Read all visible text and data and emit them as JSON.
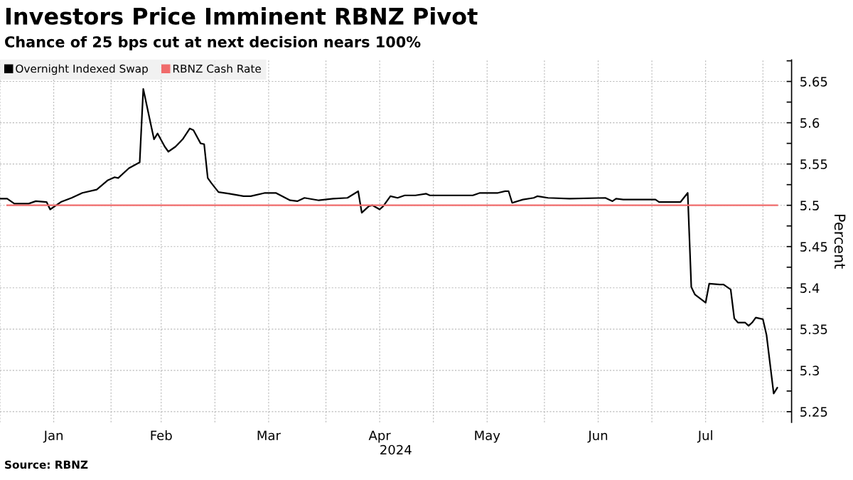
{
  "chart_data": {
    "type": "line",
    "title": "Investors Price Imminent RBNZ Pivot",
    "subtitle": "Chance of 25 bps cut at next decision nears 100%",
    "xlabel": "2024",
    "ylabel": "Percent",
    "annotations": [
      "Source: RBNZ"
    ],
    "xlim": [
      "2024-01-01",
      "2024-08-09"
    ],
    "xticks": [
      {
        "value": "2024-01-01",
        "label": null
      },
      {
        "value": "2024-01-16",
        "label": "Jan"
      },
      {
        "value": "2024-02-01",
        "label": null
      },
      {
        "value": "2024-02-15",
        "label": "Feb"
      },
      {
        "value": "2024-03-01",
        "label": null
      },
      {
        "value": "2024-03-16",
        "label": "Mar"
      },
      {
        "value": "2024-04-01",
        "label": null
      },
      {
        "value": "2024-04-16",
        "label": "Apr"
      },
      {
        "value": "2024-05-01",
        "label": null
      },
      {
        "value": "2024-05-16",
        "label": "May"
      },
      {
        "value": "2024-06-01",
        "label": null
      },
      {
        "value": "2024-06-16",
        "label": "Jun"
      },
      {
        "value": "2024-07-01",
        "label": null
      },
      {
        "value": "2024-07-16",
        "label": "Jul"
      },
      {
        "value": "2024-08-01",
        "label": null
      }
    ],
    "ylim": [
      5.237,
      5.676
    ],
    "yticks": [
      5.25,
      5.3,
      5.35,
      5.4,
      5.45,
      5.5,
      5.55,
      5.6,
      5.65
    ],
    "grid": true,
    "legend": "top left",
    "marker": "none",
    "line_style": "solid",
    "series": [
      {
        "name": "Overnight Indexed Swap",
        "color": "#000000",
        "x": [
          "2024-01-01",
          "2024-01-03",
          "2024-01-05",
          "2024-01-09",
          "2024-01-11",
          "2024-01-14",
          "2024-01-15",
          "2024-01-18",
          "2024-01-21",
          "2024-01-24",
          "2024-01-28",
          "2024-01-31",
          "2024-02-02",
          "2024-02-03",
          "2024-02-06",
          "2024-02-09",
          "2024-02-10",
          "2024-02-12",
          "2024-02-13",
          "2024-02-14",
          "2024-02-16",
          "2024-02-17",
          "2024-02-19",
          "2024-02-21",
          "2024-02-23",
          "2024-02-24",
          "2024-02-26",
          "2024-02-27",
          "2024-02-28",
          "2024-02-29",
          "2024-03-02",
          "2024-03-05",
          "2024-03-09",
          "2024-03-11",
          "2024-03-15",
          "2024-03-18",
          "2024-03-22",
          "2024-03-24",
          "2024-03-26",
          "2024-03-30",
          "2024-04-03",
          "2024-04-07",
          "2024-04-10",
          "2024-04-11",
          "2024-04-13",
          "2024-04-14",
          "2024-04-16",
          "2024-04-17",
          "2024-04-19",
          "2024-04-21",
          "2024-04-23",
          "2024-04-26",
          "2024-04-29",
          "2024-04-30",
          "2024-05-06",
          "2024-05-12",
          "2024-05-14",
          "2024-05-19",
          "2024-05-21",
          "2024-05-22",
          "2024-05-23",
          "2024-05-26",
          "2024-05-29",
          "2024-05-30",
          "2024-06-02",
          "2024-06-08",
          "2024-06-18",
          "2024-06-20",
          "2024-06-21",
          "2024-06-23",
          "2024-07-02",
          "2024-07-03",
          "2024-07-09",
          "2024-07-11",
          "2024-07-12",
          "2024-07-13",
          "2024-07-16",
          "2024-07-17",
          "2024-07-20",
          "2024-07-21",
          "2024-07-23",
          "2024-07-24",
          "2024-07-25",
          "2024-07-27",
          "2024-07-28",
          "2024-07-29",
          "2024-07-30",
          "2024-08-01",
          "2024-08-02",
          "2024-08-04",
          "2024-08-05"
        ],
        "values": [
          5.508,
          5.508,
          5.502,
          5.502,
          5.505,
          5.504,
          5.495,
          5.504,
          5.509,
          5.515,
          5.519,
          5.53,
          5.534,
          5.533,
          5.545,
          5.552,
          5.641,
          5.6,
          5.58,
          5.587,
          5.571,
          5.565,
          5.571,
          5.58,
          5.593,
          5.591,
          5.575,
          5.574,
          5.533,
          5.527,
          5.516,
          5.514,
          5.511,
          5.511,
          5.515,
          5.515,
          5.506,
          5.505,
          5.509,
          5.506,
          5.508,
          5.509,
          5.517,
          5.491,
          5.499,
          5.5,
          5.495,
          5.499,
          5.511,
          5.509,
          5.512,
          5.512,
          5.514,
          5.512,
          5.512,
          5.512,
          5.515,
          5.515,
          5.517,
          5.517,
          5.503,
          5.507,
          5.509,
          5.511,
          5.509,
          5.508,
          5.509,
          5.505,
          5.508,
          5.507,
          5.507,
          5.504,
          5.504,
          5.515,
          5.401,
          5.392,
          5.382,
          5.405,
          5.404,
          5.404,
          5.398,
          5.363,
          5.358,
          5.358,
          5.354,
          5.358,
          5.364,
          5.362,
          5.343,
          5.272,
          5.279
        ]
      },
      {
        "name": "RBNZ Cash Rate",
        "color": "#f06b6b",
        "x": [
          "2024-01-03",
          "2024-08-05"
        ],
        "values": [
          5.5,
          5.5
        ]
      }
    ]
  }
}
